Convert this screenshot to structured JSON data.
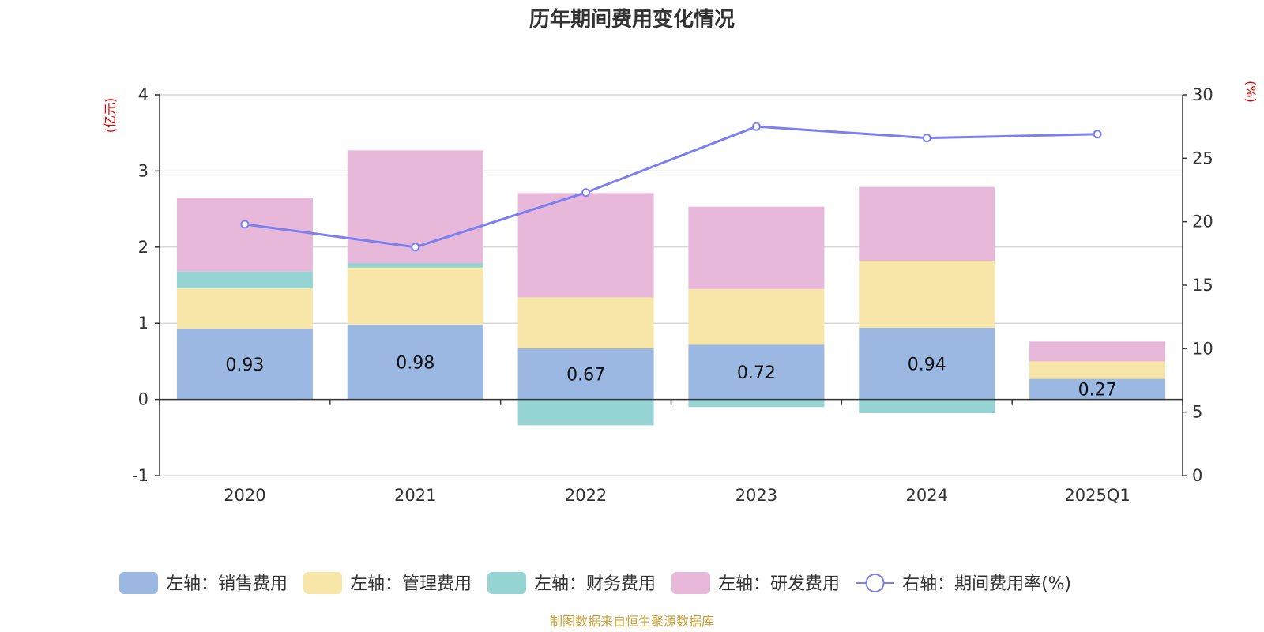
{
  "chart_data": {
    "type": "bar",
    "title": "历年期间费用变化情况",
    "categories": [
      "2020",
      "2021",
      "2022",
      "2023",
      "2024",
      "2025Q1"
    ],
    "left_axis": {
      "unit": "(亿元)",
      "ylim": [
        -1,
        4
      ],
      "ticks": [
        -1,
        0,
        1,
        2,
        3,
        4
      ]
    },
    "right_axis": {
      "unit": "(%)",
      "ylim": [
        0,
        30
      ],
      "ticks": [
        0,
        5,
        10,
        15,
        20,
        25,
        30
      ]
    },
    "series": [
      {
        "name": "左轴：销售费用",
        "type": "bar",
        "stack": true,
        "color": "#9bb8e2",
        "values": [
          0.93,
          0.98,
          0.67,
          0.72,
          0.94,
          0.27
        ],
        "show_labels": true
      },
      {
        "name": "左轴：管理费用",
        "type": "bar",
        "stack": true,
        "color": "#f8e6a8",
        "values": [
          0.53,
          0.75,
          0.67,
          0.73,
          0.88,
          0.23
        ]
      },
      {
        "name": "左轴：财务费用",
        "type": "bar",
        "stack": true,
        "color": "#96d4d4",
        "values": [
          0.22,
          0.06,
          -0.34,
          -0.1,
          -0.18,
          -0.01
        ]
      },
      {
        "name": "左轴：研发费用",
        "type": "bar",
        "stack": true,
        "color": "#e7b8da",
        "values": [
          0.97,
          1.48,
          1.37,
          1.08,
          0.97,
          0.26
        ]
      },
      {
        "name": "右轴：期间费用率(%)",
        "type": "line",
        "axis": "right",
        "color": "#7b7ff0",
        "values": [
          19.8,
          18.0,
          22.3,
          27.5,
          26.6,
          26.9
        ]
      }
    ],
    "grid": true,
    "legend_position": "bottom"
  },
  "source_text": "制图数据来自恒生聚源数据库"
}
